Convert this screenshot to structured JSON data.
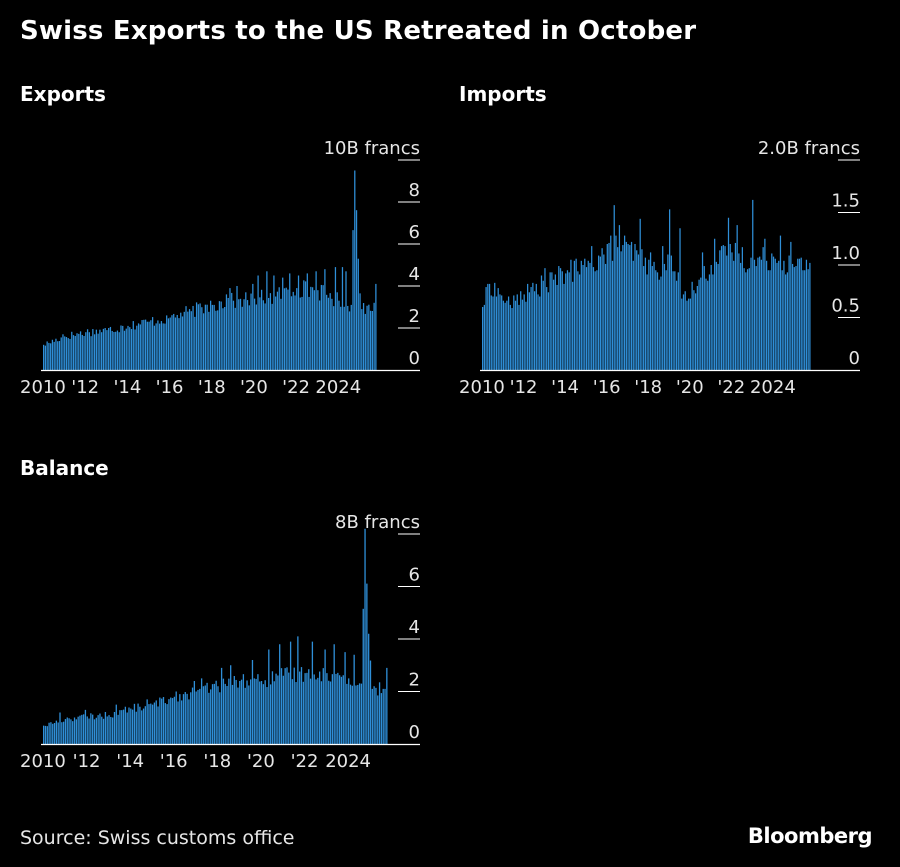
{
  "title": "Swiss Exports to the US Retreated in October",
  "source": "Source: Swiss customs office",
  "logo": "Bloomberg",
  "colors": {
    "bar": "#2f8fd8",
    "background": "#000000",
    "text": "#ffffff"
  },
  "chart_data": [
    {
      "type": "bar",
      "title": "Exports",
      "unit_label": "10B francs",
      "ylim": [
        0,
        10
      ],
      "yticks": [
        0,
        2,
        4,
        6,
        8,
        10
      ],
      "ytick_labels": [
        "0",
        "2",
        "4",
        "6",
        "8",
        "10B francs"
      ],
      "xlim": [
        2010,
        2026
      ],
      "xticks": [
        2010,
        2012,
        2014,
        2016,
        2018,
        2020,
        2022,
        2024
      ],
      "xtick_labels": [
        "2010",
        "'12",
        "'14",
        "'16",
        "'18",
        "'20",
        "'22",
        "2024"
      ],
      "x_start": "2010-01",
      "anchors": [
        [
          0,
          1.2
        ],
        [
          12,
          1.6
        ],
        [
          24,
          1.8
        ],
        [
          36,
          1.9
        ],
        [
          48,
          2.1
        ],
        [
          60,
          2.3
        ],
        [
          72,
          2.5
        ],
        [
          84,
          2.8
        ],
        [
          96,
          3.1
        ],
        [
          108,
          3.3
        ],
        [
          120,
          3.4
        ],
        [
          132,
          3.5
        ],
        [
          144,
          3.9
        ],
        [
          156,
          3.8
        ],
        [
          168,
          3.3
        ],
        [
          175,
          3.1
        ],
        [
          177,
          9.5
        ],
        [
          179,
          5.3
        ],
        [
          181,
          2.9
        ],
        [
          188,
          3.2
        ],
        [
          189,
          4.1
        ],
        [
          190,
          3.9
        ]
      ],
      "spikes": {
        "11": 1.7,
        "35": 2.0,
        "45": 2.1,
        "59": 2.3,
        "70": 2.6,
        "83": 2.9,
        "95": 3.3,
        "104": 3.6,
        "106": 3.9,
        "110": 4.0,
        "119": 4.1,
        "122": 4.5,
        "127": 4.7,
        "131": 4.5,
        "136": 4.4,
        "140": 4.6,
        "145": 4.5,
        "150": 4.6,
        "155": 4.7,
        "160": 4.8,
        "166": 4.9,
        "170": 4.9,
        "172": 4.7
      }
    },
    {
      "type": "bar",
      "title": "Imports",
      "unit_label": "2.0B francs",
      "ylim": [
        0,
        2.0
      ],
      "yticks": [
        0,
        0.5,
        1.0,
        1.5,
        2.0
      ],
      "ytick_labels": [
        "0",
        "0.5",
        "1.0",
        "1.5",
        "2.0B francs"
      ],
      "xlim": [
        2010,
        2026
      ],
      "xticks": [
        2010,
        2012,
        2014,
        2016,
        2018,
        2020,
        2022,
        2024
      ],
      "xtick_labels": [
        "2010",
        "'12",
        "'14",
        "'16",
        "'18",
        "'20",
        "'22",
        "2024"
      ],
      "x_start": "2010-01",
      "anchors": [
        [
          0,
          0.6
        ],
        [
          4,
          0.82
        ],
        [
          10,
          0.72
        ],
        [
          16,
          0.62
        ],
        [
          24,
          0.72
        ],
        [
          36,
          0.82
        ],
        [
          48,
          0.92
        ],
        [
          60,
          0.98
        ],
        [
          70,
          1.1
        ],
        [
          76,
          1.18
        ],
        [
          90,
          1.1
        ],
        [
          100,
          0.95
        ],
        [
          108,
          1.05
        ],
        [
          116,
          0.72
        ],
        [
          124,
          0.8
        ],
        [
          132,
          1.0
        ],
        [
          144,
          1.12
        ],
        [
          156,
          1.02
        ],
        [
          168,
          1.08
        ],
        [
          180,
          0.98
        ],
        [
          189,
          1.02
        ]
      ],
      "spikes": {
        "3": 0.82,
        "22": 0.75,
        "36": 0.97,
        "51": 1.05,
        "63": 1.18,
        "76": 1.57,
        "79": 1.38,
        "82": 1.28,
        "91": 1.44,
        "97": 1.12,
        "104": 1.18,
        "108": 1.53,
        "114": 1.35,
        "127": 1.12,
        "134": 1.25,
        "142": 1.45,
        "147": 1.38,
        "156": 1.62,
        "163": 1.25,
        "172": 1.28,
        "178": 1.22
      }
    },
    {
      "type": "bar",
      "title": "Balance",
      "unit_label": "8B francs",
      "ylim": [
        0,
        8
      ],
      "yticks": [
        0,
        2,
        4,
        6,
        8
      ],
      "ytick_labels": [
        "0",
        "2",
        "4",
        "6",
        "8B francs"
      ],
      "xlim": [
        2010,
        2026
      ],
      "xticks": [
        2010,
        2012,
        2014,
        2016,
        2018,
        2020,
        2022,
        2024
      ],
      "xtick_labels": [
        "2010",
        "'12",
        "'14",
        "'16",
        "'18",
        "'20",
        "'22",
        "2024"
      ],
      "x_start": "2010-01",
      "anchors": [
        [
          0,
          0.7
        ],
        [
          12,
          0.95
        ],
        [
          24,
          1.05
        ],
        [
          36,
          1.1
        ],
        [
          48,
          1.35
        ],
        [
          60,
          1.5
        ],
        [
          72,
          1.8
        ],
        [
          84,
          2.0
        ],
        [
          96,
          2.2
        ],
        [
          108,
          2.4
        ],
        [
          120,
          2.4
        ],
        [
          132,
          2.6
        ],
        [
          144,
          2.7
        ],
        [
          156,
          2.7
        ],
        [
          168,
          2.5
        ],
        [
          175,
          2.3
        ],
        [
          177,
          8.2
        ],
        [
          179,
          4.2
        ],
        [
          181,
          2.1
        ],
        [
          188,
          2.1
        ],
        [
          189,
          2.9
        ],
        [
          190,
          2.6
        ]
      ],
      "spikes": {
        "9": 1.2,
        "23": 1.3,
        "40": 1.5,
        "57": 1.7,
        "73": 2.0,
        "83": 2.4,
        "87": 2.5,
        "98": 2.9,
        "103": 3.0,
        "115": 3.2,
        "124": 3.6,
        "130": 3.8,
        "136": 3.9,
        "140": 4.1,
        "148": 3.9,
        "155": 3.6,
        "160": 3.8,
        "166": 3.5,
        "171": 3.4
      }
    }
  ]
}
